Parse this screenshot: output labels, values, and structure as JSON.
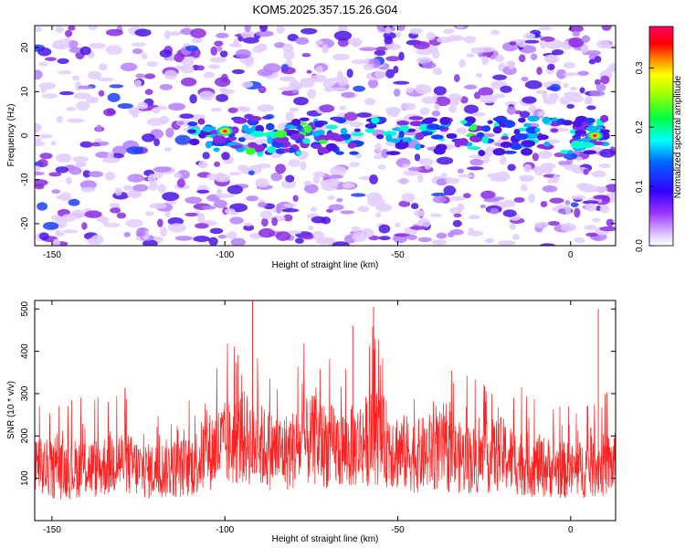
{
  "title": "KOM5.2025.357.15.26.G04",
  "chart_data": [
    {
      "type": "heatmap",
      "xlabel": "Height of straight line (km)",
      "ylabel": "Frequency (Hz)",
      "xlim": [
        -155,
        13
      ],
      "ylim": [
        -25,
        25
      ],
      "xticks": [
        -150,
        -100,
        -50,
        0
      ],
      "yticks": [
        -20,
        -10,
        0,
        10,
        20
      ],
      "colorbar": {
        "label": "Normalized spectral amplitude",
        "range": [
          0,
          0.37
        ],
        "ticks": [
          0.0,
          0.1,
          0.2,
          0.3
        ],
        "colors": [
          "#ffffff",
          "#9933ff",
          "#0000ff",
          "#00ffff",
          "#00ff00",
          "#ffff00",
          "#ff8800",
          "#ff0000",
          "#ff00ff"
        ]
      },
      "ridge": {
        "frequency_hz": 0,
        "x_start_km": -110,
        "x_end_km": 10
      },
      "peaks": [
        {
          "x_km": -100,
          "freq_hz": 1,
          "amplitude": 0.35
        },
        {
          "x_km": 7,
          "freq_hz": 0,
          "amplitude": 0.35
        }
      ],
      "grid": false
    },
    {
      "type": "line",
      "xlabel": "Height of straight line (km)",
      "ylabel": "SNR (10 * v/v)",
      "xlim": [
        -155,
        13
      ],
      "ylim": [
        0,
        520
      ],
      "xticks": [
        -150,
        -100,
        -50,
        0
      ],
      "yticks": [
        100,
        200,
        300,
        400,
        500
      ],
      "series": [
        {
          "color": "#ff0000",
          "x": [
            -152,
            -149,
            -146,
            -143,
            -140,
            -137,
            -134,
            -131,
            -128,
            -125,
            -122,
            -119,
            -116,
            -113,
            -110,
            -107,
            -104,
            -101,
            -98,
            -95,
            -92,
            -89,
            -86,
            -83,
            -80,
            -77,
            -74,
            -71,
            -68,
            -65,
            -62,
            -59,
            -56,
            -53,
            -50,
            -47,
            -44,
            -41,
            -38,
            -35,
            -32,
            -29,
            -26,
            -23,
            -20,
            -17,
            -14,
            -11,
            -8,
            -5,
            -2,
            1,
            4,
            7,
            10
          ],
          "y": [
            150,
            140,
            145,
            150,
            155,
            150,
            160,
            175,
            160,
            150,
            140,
            145,
            150,
            150,
            155,
            180,
            200,
            215,
            220,
            240,
            225,
            210,
            200,
            195,
            205,
            220,
            230,
            215,
            210,
            205,
            215,
            230,
            240,
            220,
            200,
            190,
            185,
            195,
            200,
            185,
            180,
            175,
            170,
            185,
            190,
            175,
            165,
            160,
            155,
            150,
            145,
            140,
            150,
            155,
            160
          ]
        }
      ],
      "highlights": [
        {
          "x": -92,
          "y": 520
        },
        {
          "x": -63,
          "y": 460
        },
        {
          "x": -57,
          "y": 505
        },
        {
          "x": 8,
          "y": 500
        }
      ],
      "grid": false
    }
  ]
}
